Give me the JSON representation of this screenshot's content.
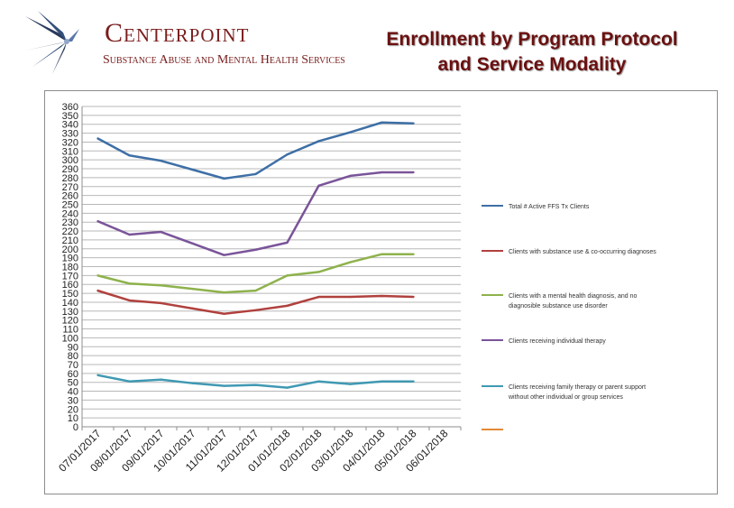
{
  "logo": {
    "name": "Centerpoint",
    "subtitle": "Substance Abuse and Mental Health Services"
  },
  "header": {
    "title_line1": "Enrollment by Program Protocol",
    "title_line2": "and Service Modality"
  },
  "colors": {
    "title": "#6b1010",
    "logo_text": "#7a1d1d",
    "grid": "#b8b8b8"
  },
  "chart_data": {
    "type": "line",
    "title": "",
    "xlabel": "",
    "ylabel": "",
    "ylim": [
      0,
      360
    ],
    "ytick_step": 10,
    "grid": true,
    "legend_position": "right",
    "categories": [
      "07/01/2017",
      "08/01/2017",
      "09/01/2017",
      "10/01/2017",
      "11/01/2017",
      "12/01/2017",
      "01/01/2018",
      "02/01/2018",
      "03/01/2018",
      "04/01/2018",
      "05/01/2018",
      "06/01/2018"
    ],
    "series": [
      {
        "name": "Total # Active FFS Tx Clients",
        "color": "#3e6fa6",
        "values": [
          324,
          305,
          299,
          289,
          279,
          284,
          306,
          321,
          331,
          342,
          341,
          null
        ]
      },
      {
        "name": "Clients with substance use & co-occurring diagnoses",
        "color": "#b0413e",
        "values": [
          153,
          142,
          139,
          133,
          127,
          131,
          136,
          146,
          146,
          147,
          146,
          null
        ]
      },
      {
        "name": "Clients with a mental health diagnosis, and no diagnosible substance use disorder",
        "color": "#8eb24c",
        "values": [
          170,
          161,
          159,
          155,
          151,
          153,
          170,
          174,
          185,
          194,
          194,
          null
        ]
      },
      {
        "name": "Clients receiving individual therapy",
        "color": "#7a5499",
        "values": [
          231,
          216,
          219,
          206,
          193,
          199,
          207,
          271,
          282,
          286,
          286,
          null
        ]
      },
      {
        "name": "Clients receiving family therapy or parent support without other individual or group services",
        "color": "#4099b3",
        "values": [
          58,
          51,
          53,
          49,
          46,
          47,
          44,
          51,
          48,
          51,
          51,
          null
        ]
      },
      {
        "name": "",
        "color": "#e38a35",
        "values": [
          null,
          null,
          null,
          null,
          null,
          null,
          null,
          null,
          null,
          null,
          null,
          null
        ]
      }
    ]
  }
}
